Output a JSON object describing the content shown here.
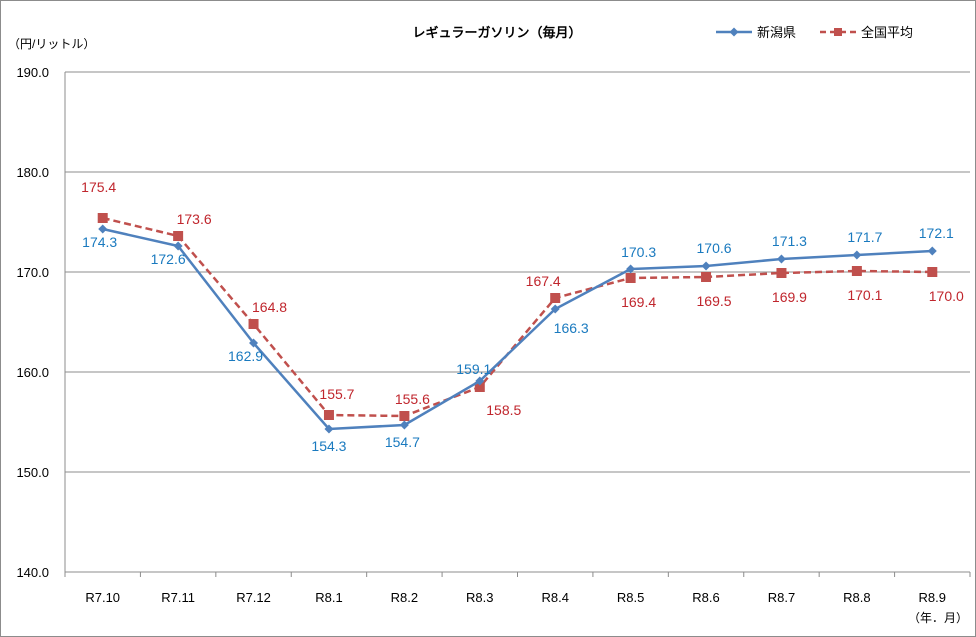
{
  "chart_data": {
    "type": "line",
    "title": "レギュラーガソリン（毎月）",
    "ylabel": "（円/リットル）",
    "xlabel": "（年．月）",
    "categories": [
      "R7.10",
      "R7.11",
      "R7.12",
      "R8.1",
      "R8.2",
      "R8.3",
      "R8.4",
      "R8.5",
      "R8.6",
      "R8.7",
      "R8.8",
      "R8.9"
    ],
    "ylim": [
      140,
      190
    ],
    "yticks": [
      "140.0",
      "150.0",
      "160.0",
      "170.0",
      "180.0",
      "190.0"
    ],
    "grid": true,
    "legend_position": "top-right",
    "series": [
      {
        "name": "新潟県",
        "color": "#4f81bd",
        "label_color": "#1a7abf",
        "marker": "diamond",
        "line_style": "solid",
        "values": [
          174.3,
          172.6,
          162.9,
          154.3,
          154.7,
          159.1,
          166.3,
          170.3,
          170.6,
          171.3,
          171.7,
          172.1
        ],
        "labels": [
          "174.3",
          "172.6",
          "162.9",
          "154.3",
          "154.7",
          "159.1",
          "166.3",
          "170.3",
          "170.6",
          "171.3",
          "171.7",
          "172.1"
        ]
      },
      {
        "name": "全国平均",
        "color": "#c0504d",
        "label_color": "#c0262d",
        "marker": "square",
        "line_style": "dashed",
        "values": [
          175.4,
          173.6,
          164.8,
          155.7,
          155.6,
          158.5,
          167.4,
          169.4,
          169.5,
          169.9,
          170.1,
          170.0
        ],
        "labels": [
          "175.4",
          "173.6",
          "164.8",
          "155.7",
          "155.6",
          "158.5",
          "167.4",
          "169.4",
          "169.5",
          "169.9",
          "170.1",
          "170.0"
        ]
      }
    ]
  }
}
